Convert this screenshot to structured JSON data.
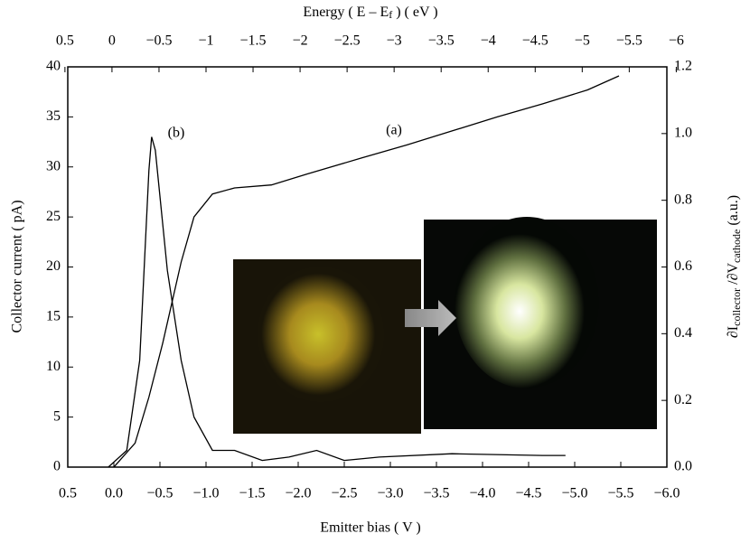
{
  "chart_data": {
    "type": "line",
    "xlabel": "Emitter bias ( V )",
    "ylabel": "Collector current ( pA)",
    "y2label_parts": [
      "∂I",
      "collector",
      " /∂V",
      "cathode",
      "  (a.u.)"
    ],
    "x2label_parts": [
      "Energy ( E – E",
      "f",
      " ) ( eV )"
    ],
    "annotations": [
      "(a)",
      "(b)"
    ],
    "xlim": [
      0.5,
      -6.0
    ],
    "xticks": [
      {
        "value": 0.5,
        "label": "0.5"
      },
      {
        "value": 0,
        "label": "0.0"
      },
      {
        "value": -0.5,
        "label": "−0.5"
      },
      {
        "value": -1,
        "label": "−1.0"
      },
      {
        "value": -1.5,
        "label": "−1.5"
      },
      {
        "value": -2,
        "label": "−2.0"
      },
      {
        "value": -2.5,
        "label": "−2.5"
      },
      {
        "value": -3,
        "label": "−3.0"
      },
      {
        "value": -3.5,
        "label": "−3.5"
      },
      {
        "value": -4,
        "label": "−4.0"
      },
      {
        "value": -4.5,
        "label": "−4.5"
      },
      {
        "value": -5,
        "label": "−5.0"
      },
      {
        "value": -5.5,
        "label": "−5.5"
      },
      {
        "value": -6,
        "label": "−6.0"
      }
    ],
    "x2lim": [
      0.47,
      -5.9
    ],
    "x2ticks": [
      0.5,
      0,
      {
        "value": -0.5,
        "label": "−0.5"
      },
      {
        "value": -1,
        "label": "−1"
      },
      {
        "value": -1.5,
        "label": "−1.5"
      },
      {
        "value": -2,
        "label": "−2"
      },
      {
        "value": -2.5,
        "label": "−2.5"
      },
      {
        "value": -3,
        "label": "−3"
      },
      {
        "value": -3.5,
        "label": "−3.5"
      },
      {
        "value": -4,
        "label": "−4"
      },
      {
        "value": -4.5,
        "label": "−4.5"
      },
      {
        "value": -5,
        "label": "−5"
      },
      {
        "value": -5.5,
        "label": "−5.5"
      },
      {
        "value": -6,
        "label": "−6"
      }
    ],
    "ylim": [
      0,
      40
    ],
    "yticks": [
      0,
      5,
      10,
      15,
      20,
      25,
      30,
      35,
      40
    ],
    "y2lim": [
      0,
      1.2
    ],
    "y2ticks": [
      {
        "value": 0,
        "label": "0.0"
      },
      {
        "value": 0.2,
        "label": "0.2"
      },
      {
        "value": 0.4,
        "label": "0.4"
      },
      {
        "value": 0.6,
        "label": "0.6"
      },
      {
        "value": 0.8,
        "label": "0.8"
      },
      {
        "value": 1.0,
        "label": "1.0"
      },
      {
        "value": 1.2,
        "label": "1.2"
      }
    ],
    "series": [
      {
        "color": "#000000",
        "x": [
          0.0,
          -0.23,
          -0.38,
          -0.53,
          -0.73,
          -0.87,
          -1.07,
          -1.31,
          -1.71,
          -2.1,
          -2.69,
          -3.18,
          -3.67,
          -4.16,
          -4.65,
          -5.14,
          -5.48
        ],
        "values": [
          0,
          2.4,
          7,
          12.4,
          20.5,
          25,
          27.3,
          27.9,
          28.2,
          29.3,
          30.9,
          32.2,
          33.6,
          35,
          36.3,
          37.7,
          39.1
        ]
      },
      {
        "color": "#000000",
        "axis": "y2",
        "x": [
          0.06,
          -0.14,
          -0.28,
          -0.38,
          -0.41,
          -0.45,
          -0.58,
          -0.73,
          -0.87,
          -1.07,
          -1.31,
          -1.61,
          -1.9,
          -2.2,
          -2.5,
          -2.88,
          -3.67,
          -4.65,
          -4.9
        ],
        "values": [
          0,
          0.05,
          0.32,
          0.89,
          0.99,
          0.95,
          0.59,
          0.32,
          0.15,
          0.05,
          0.05,
          0.02,
          0.03,
          0.05,
          0.02,
          0.03,
          0.04,
          0.035,
          0.035
        ]
      }
    ]
  }
}
